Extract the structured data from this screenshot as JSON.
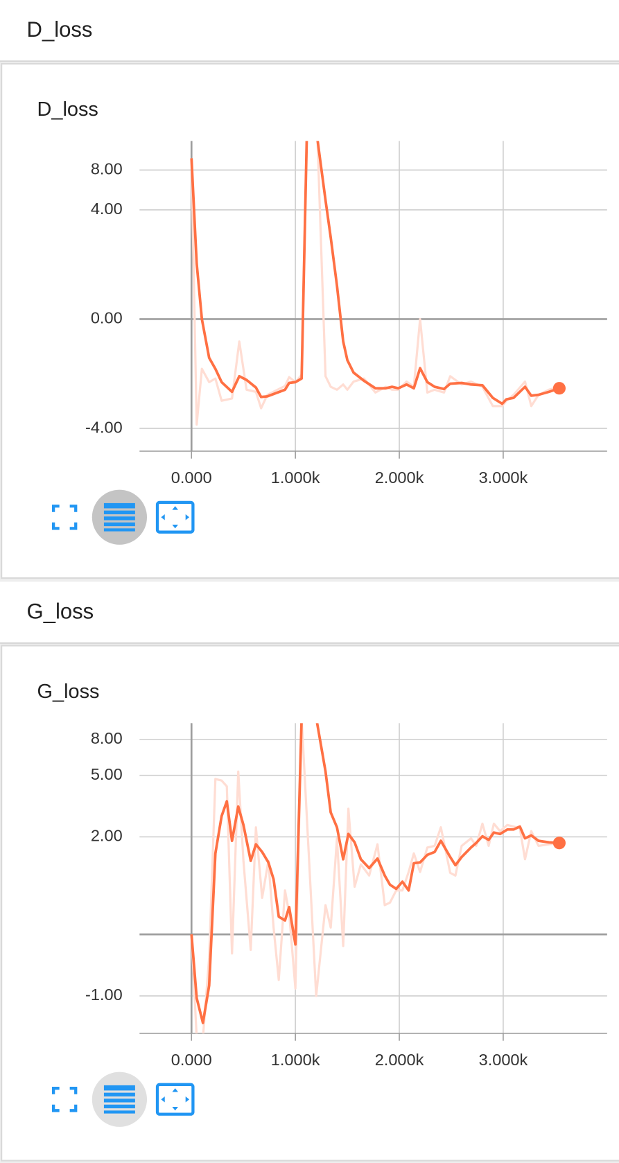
{
  "sections": [
    {
      "header": "D_loss"
    },
    {
      "header": "G_loss"
    }
  ],
  "chart_data": [
    {
      "type": "line",
      "title": "D_loss",
      "yscale": "symlog",
      "grid": true,
      "xlim": [
        -500,
        4000
      ],
      "xticks": [
        {
          "value": 0,
          "label": "0.000"
        },
        {
          "value": 1000,
          "label": "1.000k"
        },
        {
          "value": 2000,
          "label": "2.000k"
        },
        {
          "value": 3000,
          "label": "3.000k"
        }
      ],
      "ylim": [
        -6.0,
        12.8
      ],
      "yticks": [
        {
          "value": 8,
          "label": "8.00"
        },
        {
          "value": 4,
          "label": "4.00"
        },
        {
          "value": 0,
          "label": "0.00"
        },
        {
          "value": -4,
          "label": "-4.00"
        }
      ],
      "x": [
        0,
        50,
        100,
        170,
        230,
        290,
        390,
        460,
        530,
        620,
        670,
        730,
        900,
        940,
        1000,
        1060,
        1110,
        1210,
        1290,
        1340,
        1400,
        1460,
        1500,
        1560,
        1660,
        1770,
        1870,
        1930,
        1990,
        2070,
        2140,
        2200,
        2270,
        2340,
        2430,
        2490,
        2600,
        2690,
        2800,
        2900,
        2990,
        3030,
        3100,
        3210,
        3270,
        3340,
        3440,
        3540
      ],
      "series": [
        {
          "color": "#ffddd3",
          "values": [
            9.7,
            -3.73,
            -1.08,
            -1.53,
            -1.4,
            -2.33,
            -2.22,
            -0.39,
            -1.83,
            -1.92,
            -2.72,
            -2.05,
            -1.68,
            -1.35,
            -1.53,
            -1.27,
            14,
            15,
            -1.32,
            -1.71,
            -1.83,
            -1.62,
            -1.83,
            -1.51,
            -1.4,
            -1.95,
            -1.71,
            -1.83,
            -1.83,
            -1.51,
            -1.71,
            0,
            -1.95,
            -1.83,
            -1.95,
            -1.32,
            -1.62,
            -1.51,
            -1.71,
            -2.6,
            -2.6,
            -2.33,
            -2.05,
            -1.51,
            -2.6,
            -2.05,
            -1.83,
            -1.71
          ]
        },
        {
          "color": "#ff7043",
          "values": [
            9.7,
            1.27,
            0,
            -0.77,
            -1.08,
            -1.53,
            -1.92,
            -1.32,
            -1.45,
            -1.74,
            -2.15,
            -2.12,
            -1.83,
            -1.56,
            -1.53,
            -1.4,
            14,
            13.5,
            4.76,
            2.33,
            0.64,
            -0.39,
            -0.83,
            -1.2,
            -1.48,
            -1.77,
            -1.77,
            -1.71,
            -1.77,
            -1.62,
            -1.77,
            -1.06,
            -1.53,
            -1.71,
            -1.8,
            -1.59,
            -1.56,
            -1.62,
            -1.65,
            -2.19,
            -2.48,
            -2.26,
            -2.19,
            -1.71,
            -2.09,
            -2.05,
            -1.92,
            -1.77
          ]
        }
      ]
    },
    {
      "type": "line",
      "title": "G_loss",
      "yscale": "symlog",
      "grid": true,
      "xlim": [
        -500,
        4000
      ],
      "xticks": [
        {
          "value": 0,
          "label": "0.000"
        },
        {
          "value": 1000,
          "label": "1.000k"
        },
        {
          "value": 2000,
          "label": "2.000k"
        },
        {
          "value": 3000,
          "label": "3.000k"
        }
      ],
      "ylim": [
        -2.05,
        9.8
      ],
      "yticks": [
        {
          "value": 8,
          "label": "8.00"
        },
        {
          "value": 5,
          "label": "5.00"
        },
        {
          "value": 2,
          "label": "2.00"
        },
        {
          "value": -1,
          "label": "-1.00"
        }
      ],
      "x": [
        0,
        50,
        110,
        170,
        230,
        290,
        340,
        390,
        450,
        500,
        570,
        620,
        680,
        740,
        790,
        840,
        900,
        940,
        1000,
        1060,
        1200,
        1290,
        1340,
        1400,
        1460,
        1510,
        1570,
        1630,
        1710,
        1790,
        1860,
        1910,
        1970,
        2030,
        2090,
        2140,
        2200,
        2270,
        2340,
        2400,
        2490,
        2540,
        2600,
        2690,
        2740,
        2800,
        2860,
        2910,
        2970,
        3040,
        3100,
        3160,
        3210,
        3270,
        3340,
        3440,
        3540
      ],
      "series": [
        {
          "color": "#ffddd3",
          "values": [
            0,
            -2.2,
            -2.2,
            -0.3,
            4.76,
            4.66,
            4.3,
            -0.24,
            5.26,
            1.29,
            -0.19,
            2.34,
            0.51,
            1.29,
            0.08,
            -0.67,
            0.64,
            0.27,
            -0.84,
            10.5,
            -1.0,
            0.39,
            0.08,
            1.95,
            -0.14,
            3.12,
            0.71,
            1.2,
            0.94,
            1.76,
            0.39,
            0.43,
            0.64,
            0.64,
            1.02,
            1.49,
            1.02,
            1.66,
            1.71,
            2.34,
            1.0,
            0.94,
            1.71,
            1.95,
            1.71,
            2.48,
            1.71,
            2.48,
            2.2,
            2.43,
            2.37,
            2.31,
            1.33,
            2.2,
            1.71,
            1.76,
            1.8
          ]
        },
        {
          "color": "#ff7043",
          "values": [
            0,
            -1.05,
            -1.71,
            -0.78,
            1.49,
            2.79,
            3.48,
            1.87,
            3.22,
            2.43,
            1.29,
            1.76,
            1.53,
            1.25,
            0.86,
            0.22,
            0.17,
            0.36,
            -0.12,
            10.5,
            10.5,
            5.26,
            2.95,
            2.34,
            1.33,
            2.1,
            1.82,
            1.33,
            1.11,
            1.35,
            0.94,
            0.75,
            0.67,
            0.81,
            0.64,
            1.23,
            1.25,
            1.45,
            1.53,
            1.87,
            1.39,
            1.18,
            1.39,
            1.66,
            1.8,
            2.02,
            1.9,
            2.15,
            2.1,
            2.26,
            2.26,
            2.37,
            1.95,
            2.05,
            1.87,
            1.82,
            1.8
          ]
        }
      ]
    }
  ]
}
